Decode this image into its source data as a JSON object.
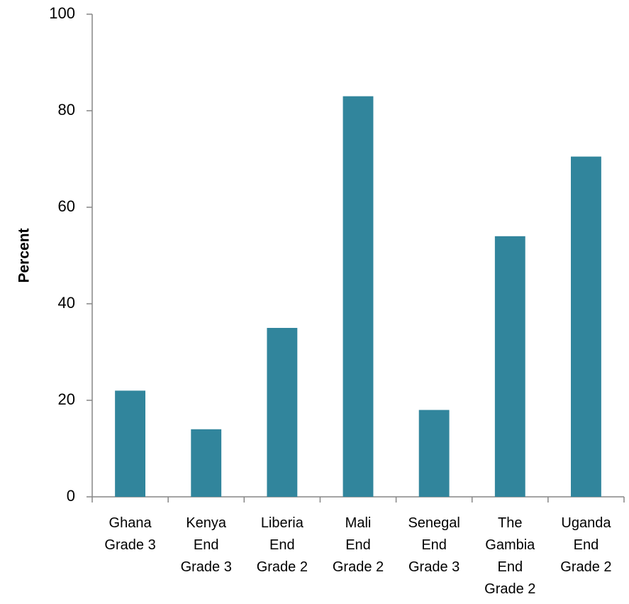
{
  "chart_data": {
    "type": "bar",
    "y_label": "Percent",
    "categories": [
      "Ghana\nGrade 3",
      "Kenya\nEnd\nGrade 3",
      "Liberia\nEnd\nGrade 2",
      "Mali\nEnd\nGrade 2",
      "Senegal\nEnd\nGrade 3",
      "The\nGambia\nEnd\nGrade 2",
      "Uganda\nEnd\nGrade 2"
    ],
    "values": [
      22,
      14,
      35,
      83,
      18,
      54,
      70.5
    ],
    "color": "#31859c",
    "ylim": [
      0,
      100
    ],
    "yticks": [
      0,
      20,
      40,
      60,
      80,
      100
    ],
    "grid": false
  }
}
